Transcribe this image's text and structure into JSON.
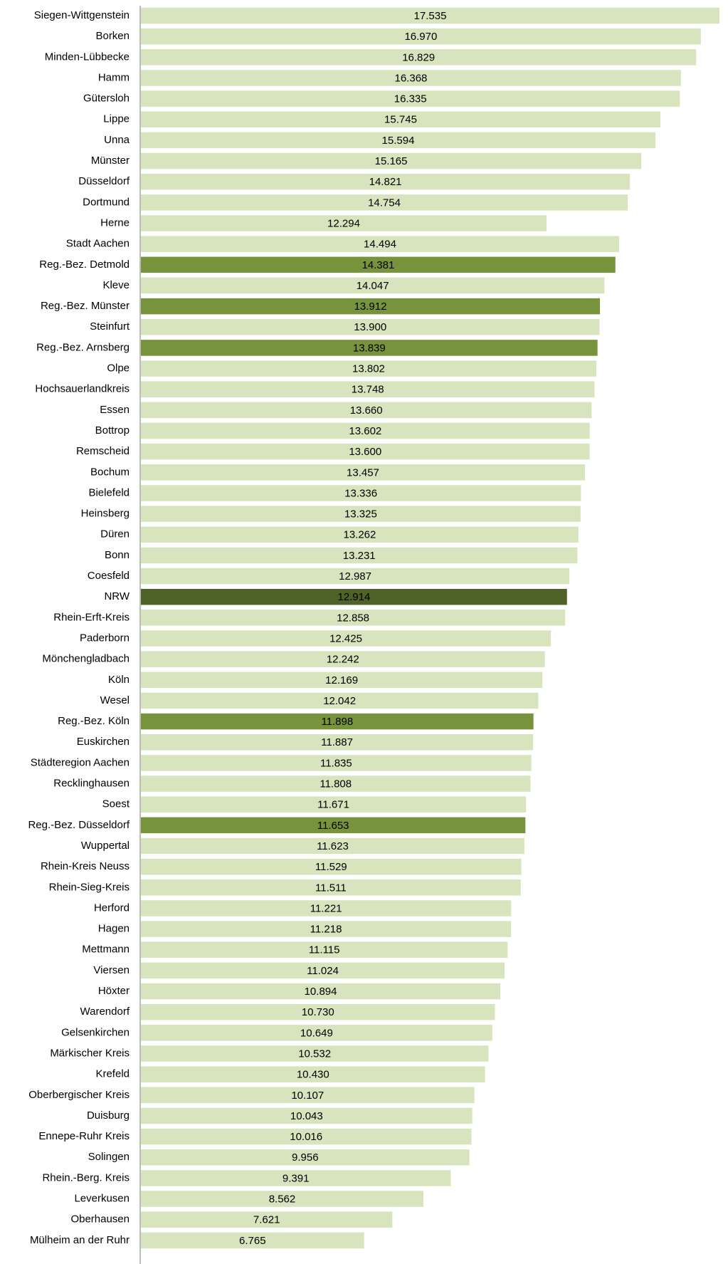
{
  "chart_data": {
    "type": "bar",
    "orientation": "horizontal",
    "categories": [
      "Siegen-Wittgenstein",
      "Borken",
      "Minden-Lübbecke",
      "Hamm",
      "Gütersloh",
      "Lippe",
      "Unna",
      "Münster",
      "Düsseldorf",
      "Dortmund",
      "Herne",
      "Stadt Aachen",
      "Reg.-Bez. Detmold",
      "Kleve",
      "Reg.-Bez. Münster",
      "Steinfurt",
      "Reg.-Bez. Arnsberg",
      "Olpe",
      "Hochsauerlandkreis",
      "Essen",
      "Bottrop",
      "Remscheid",
      "Bochum",
      "Bielefeld",
      "Heinsberg",
      "Düren",
      "Bonn",
      "Coesfeld",
      "NRW",
      "Rhein-Erft-Kreis",
      "Paderborn",
      "Mönchengladbach",
      "Köln",
      "Wesel",
      "Reg.-Bez. Köln",
      "Euskirchen",
      "Städteregion Aachen",
      "Recklinghausen",
      "Soest",
      "Reg.-Bez. Düsseldorf",
      "Wuppertal",
      "Rhein-Kreis Neuss",
      "Rhein-Sieg-Kreis",
      "Herford",
      "Hagen",
      "Mettmann",
      "Viersen",
      "Höxter",
      "Warendorf",
      "Gelsenkirchen",
      "Märkischer Kreis",
      "Krefeld",
      "Oberbergischer Kreis",
      "Duisburg",
      "Ennepe-Ruhr Kreis",
      "Solingen",
      "Rhein.-Berg. Kreis",
      "Leverkusen",
      "Oberhausen",
      "Mülheim an der Ruhr"
    ],
    "values": [
      17535,
      16970,
      16829,
      16368,
      16335,
      15745,
      15594,
      15165,
      14821,
      14754,
      12294,
      14494,
      14381,
      14047,
      13912,
      13900,
      13839,
      13802,
      13748,
      13660,
      13602,
      13600,
      13457,
      13336,
      13325,
      13262,
      13231,
      12987,
      12914,
      12858,
      12425,
      12242,
      12169,
      12042,
      11898,
      11887,
      11835,
      11808,
      11671,
      11653,
      11623,
      11529,
      11511,
      11221,
      11218,
      11115,
      11024,
      10894,
      10730,
      10649,
      10532,
      10430,
      10107,
      10043,
      10016,
      9956,
      9391,
      8562,
      7621,
      6765
    ],
    "value_labels": [
      "17.535",
      "16.970",
      "16.829",
      "16.368",
      "16.335",
      "15.745",
      "15.594",
      "15.165",
      "14.821",
      "14.754",
      "12.294",
      "14.494",
      "14.381",
      "14.047",
      "13.912",
      "13.900",
      "13.839",
      "13.802",
      "13.748",
      "13.660",
      "13.602",
      "13.600",
      "13.457",
      "13.336",
      "13.325",
      "13.262",
      "13.231",
      "12.987",
      "12.914",
      "12.858",
      "12.425",
      "12.242",
      "12.169",
      "12.042",
      "11.898",
      "11.887",
      "11.835",
      "11.808",
      "11.671",
      "11.653",
      "11.623",
      "11.529",
      "11.511",
      "11.221",
      "11.218",
      "11.115",
      "11.024",
      "10.894",
      "10.730",
      "10.649",
      "10.532",
      "10.430",
      "10.107",
      "10.043",
      "10.016",
      "9.956",
      "9.391",
      "8.562",
      "7.621",
      "6.765"
    ],
    "colors": [
      "#d7e4bd",
      "#d7e4bd",
      "#d7e4bd",
      "#d7e4bd",
      "#d7e4bd",
      "#d7e4bd",
      "#d7e4bd",
      "#d7e4bd",
      "#d7e4bd",
      "#d7e4bd",
      "#d7e4bd",
      "#d7e4bd",
      "#77933c",
      "#d7e4bd",
      "#77933c",
      "#d7e4bd",
      "#77933c",
      "#d7e4bd",
      "#d7e4bd",
      "#d7e4bd",
      "#d7e4bd",
      "#d7e4bd",
      "#d7e4bd",
      "#d7e4bd",
      "#d7e4bd",
      "#d7e4bd",
      "#d7e4bd",
      "#d7e4bd",
      "#4f6228",
      "#d7e4bd",
      "#d7e4bd",
      "#d7e4bd",
      "#d7e4bd",
      "#d7e4bd",
      "#77933c",
      "#d7e4bd",
      "#d7e4bd",
      "#d7e4bd",
      "#d7e4bd",
      "#77933c",
      "#d7e4bd",
      "#d7e4bd",
      "#d7e4bd",
      "#d7e4bd",
      "#d7e4bd",
      "#d7e4bd",
      "#d7e4bd",
      "#d7e4bd",
      "#d7e4bd",
      "#d7e4bd",
      "#d7e4bd",
      "#d7e4bd",
      "#d7e4bd",
      "#d7e4bd",
      "#d7e4bd",
      "#d7e4bd",
      "#d7e4bd",
      "#d7e4bd",
      "#d7e4bd",
      "#d7e4bd"
    ]
  }
}
